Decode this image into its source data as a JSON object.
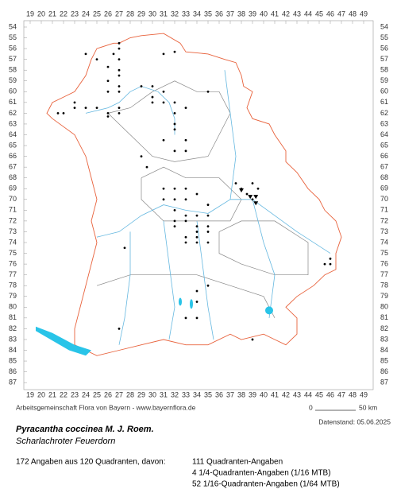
{
  "x_labels": [
    19,
    20,
    21,
    22,
    23,
    24,
    25,
    26,
    27,
    28,
    29,
    30,
    31,
    32,
    33,
    34,
    35,
    36,
    37,
    38,
    39,
    40,
    41,
    42,
    43,
    44,
    45,
    46,
    47,
    48,
    49
  ],
  "y_labels": [
    54,
    55,
    56,
    57,
    58,
    59,
    60,
    61,
    62,
    63,
    64,
    65,
    66,
    67,
    68,
    69,
    70,
    71,
    72,
    73,
    74,
    75,
    76,
    77,
    78,
    79,
    80,
    81,
    82,
    83,
    84,
    85,
    86,
    87
  ],
  "footer": {
    "source": "Arbeitsgemeinschaft Flora von Bayern - www.bayernflora.de",
    "scale_start": "0",
    "scale_end": "50 km",
    "date": "Datenstand: 05.06.2025"
  },
  "species": {
    "name": "Pyracantha coccinea M. J. Roem.",
    "common_name": "Scharlachroter Feuerdorn"
  },
  "summary": {
    "total": "172 Angaben aus 120 Quadranten, davon:",
    "lines": [
      "111 Quadranten-Angaben",
      "4 1/4-Quadranten-Angaben (1/16 MTB)",
      "52 1/16-Quadranten-Angaben (1/64 MTB)"
    ]
  }
}
